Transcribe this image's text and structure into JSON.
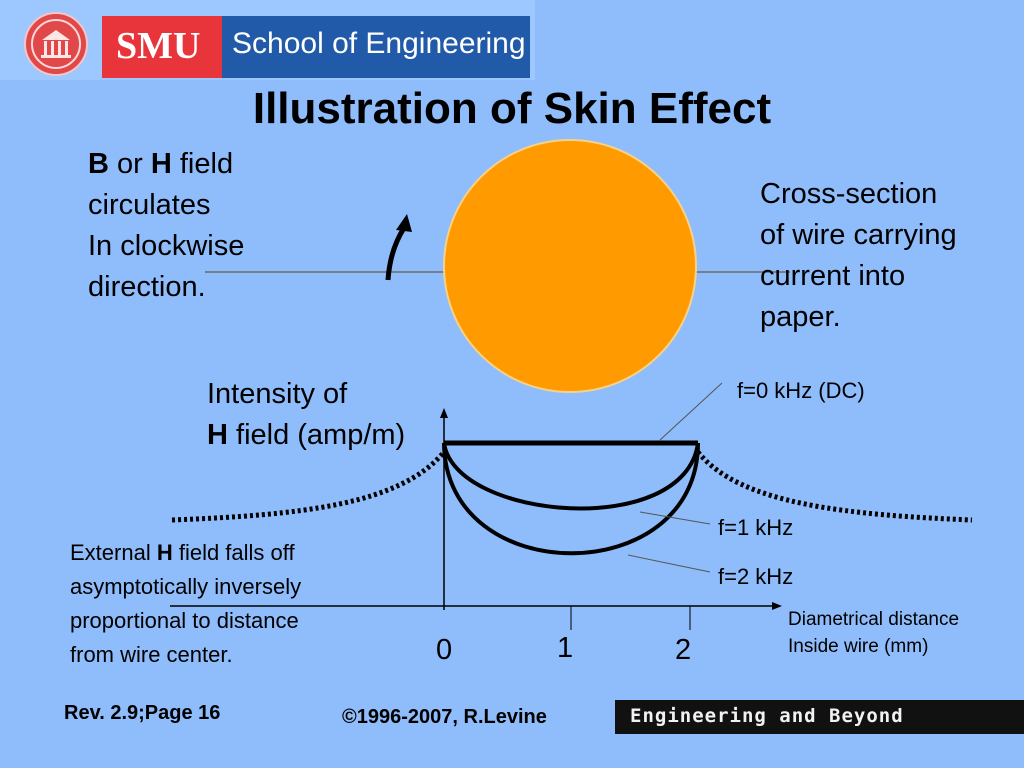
{
  "header": {
    "smu": "SMU",
    "school": "School of Engineering"
  },
  "title": "Illustration of Skin Effect",
  "field_note": {
    "b": "B",
    "or": " or ",
    "h": "H",
    "rest1": " field",
    "line2": "circulates",
    "line3": "In clockwise",
    "line4": "direction."
  },
  "cross_section": {
    "line1": "Cross-section",
    "line2": "of wire carrying",
    "line3": "current into",
    "line4": "paper."
  },
  "y_axis": {
    "line1": "Intensity of",
    "h": "H",
    "rest": " field (amp/m)"
  },
  "curves": {
    "dc": "f=0 kHz (DC)",
    "f1": "f=1 kHz",
    "f2": "f=2 kHz"
  },
  "x_axis": {
    "line1": "Diametrical distance",
    "line2": "Inside wire (mm)",
    "ticks": [
      "0",
      "1",
      "2"
    ]
  },
  "external_note": {
    "pre": "External ",
    "h": "H",
    "post": " field falls off",
    "line2": "asymptotically inversely",
    "line3": "proportional to distance",
    "line4": "from wire center."
  },
  "footer": {
    "rev": "Rev. 2.9;Page 16",
    "copyright": "©1996-2007, R.Levine",
    "tagline": "Engineering and Beyond"
  },
  "colors": {
    "background": "#8fbcfa",
    "wire": "#ff9a00",
    "smu_red": "#e8353b",
    "school_blue": "#215aa8"
  }
}
